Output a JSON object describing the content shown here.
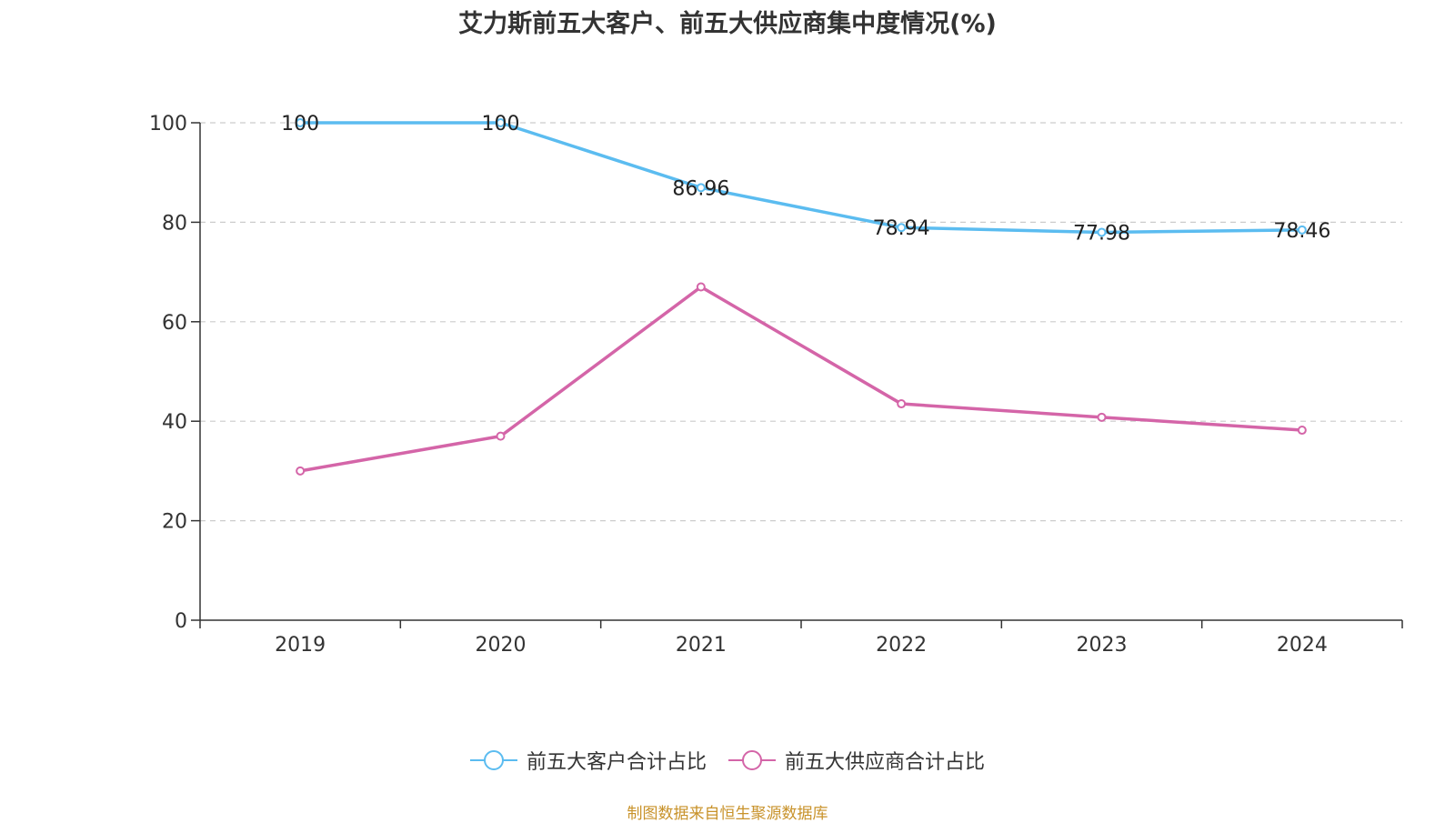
{
  "title": "艾力斯前五大客户、前五大供应商集中度情况(%)",
  "source": "制图数据来自恒生聚源数据库",
  "colors": {
    "customer": "#5bbcf0",
    "supplier": "#d465a8",
    "axis": "#333333",
    "grid": "#cccccc",
    "source": "#c8922a"
  },
  "chart_data": {
    "type": "line",
    "title": "艾力斯前五大客户、前五大供应商集中度情况(%)",
    "categories": [
      "2019",
      "2020",
      "2021",
      "2022",
      "2023",
      "2024"
    ],
    "ylim": [
      0,
      100
    ],
    "yticks": [
      0,
      20,
      40,
      60,
      80,
      100
    ],
    "grid": true,
    "legend": "bottom",
    "series": [
      {
        "name": "前五大客户合计占比",
        "values": [
          100,
          100,
          86.96,
          78.94,
          77.98,
          78.46
        ],
        "labels": [
          "100",
          "100",
          "86.96",
          "78.94",
          "77.98",
          "78.46"
        ]
      },
      {
        "name": "前五大供应商合计占比",
        "values": [
          30,
          37,
          67,
          43.5,
          40.8,
          38.2
        ]
      }
    ]
  }
}
